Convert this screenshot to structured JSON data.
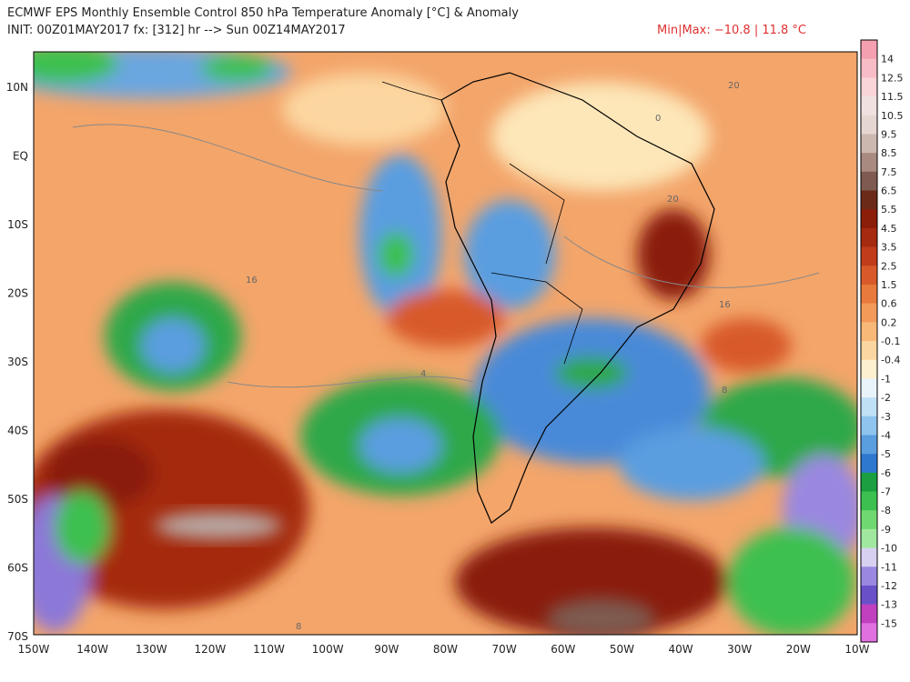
{
  "header": {
    "title": "ECMWF EPS Monthly Ensemble Control 850 hPa Temperature Anomaly [°C] & Anomaly",
    "subtitle": "INIT: 00Z01MAY2017 fx: [312] hr --> Sun 00Z14MAY2017",
    "minmax": "Min|Max: −10.8 | 11.8 °C"
  },
  "map": {
    "lat_labels": [
      "10N",
      "EQ",
      "10S",
      "20S",
      "30S",
      "40S",
      "50S",
      "60S",
      "70S"
    ],
    "lon_labels": [
      "150W",
      "140W",
      "130W",
      "120W",
      "110W",
      "100W",
      "90W",
      "80W",
      "70W",
      "60W",
      "50W",
      "40W",
      "30W",
      "20W",
      "10W"
    ],
    "contour_labels": [
      "20",
      "0",
      "20",
      "16",
      "16",
      "8",
      "4",
      "8"
    ]
  },
  "colorbar": {
    "labels": [
      "14",
      "12.5",
      "11.5",
      "10.5",
      "9.5",
      "8.5",
      "7.5",
      "6.5",
      "5.5",
      "4.5",
      "3.5",
      "2.5",
      "1.5",
      "0.6",
      "0.2",
      "-0.1",
      "-0.4",
      "-1",
      "-2",
      "-3",
      "-4",
      "-5",
      "-6",
      "-7",
      "-8",
      "-9",
      "-10",
      "-11",
      "-12",
      "-13",
      "-15"
    ],
    "colors": [
      "#f5a0b0",
      "#f7bcc5",
      "#f9d4d8",
      "#f0e0e0",
      "#e6d6d2",
      "#cdb8b0",
      "#a88a80",
      "#7e5a50",
      "#6b2a18",
      "#8a1e0a",
      "#a52a10",
      "#c03c1a",
      "#d85a2a",
      "#e87a3c",
      "#f29a58",
      "#f8b878",
      "#fcd6a0",
      "#fdf0d0",
      "#e8f4fa",
      "#bfe0f5",
      "#8ec4ee",
      "#5a9ee0",
      "#2f78d0",
      "#1aa040",
      "#3cc050",
      "#70d870",
      "#a0e8a0",
      "#d8d0f0",
      "#9a88e0",
      "#6a50c8",
      "#c040c0",
      "#e070e0"
    ]
  }
}
